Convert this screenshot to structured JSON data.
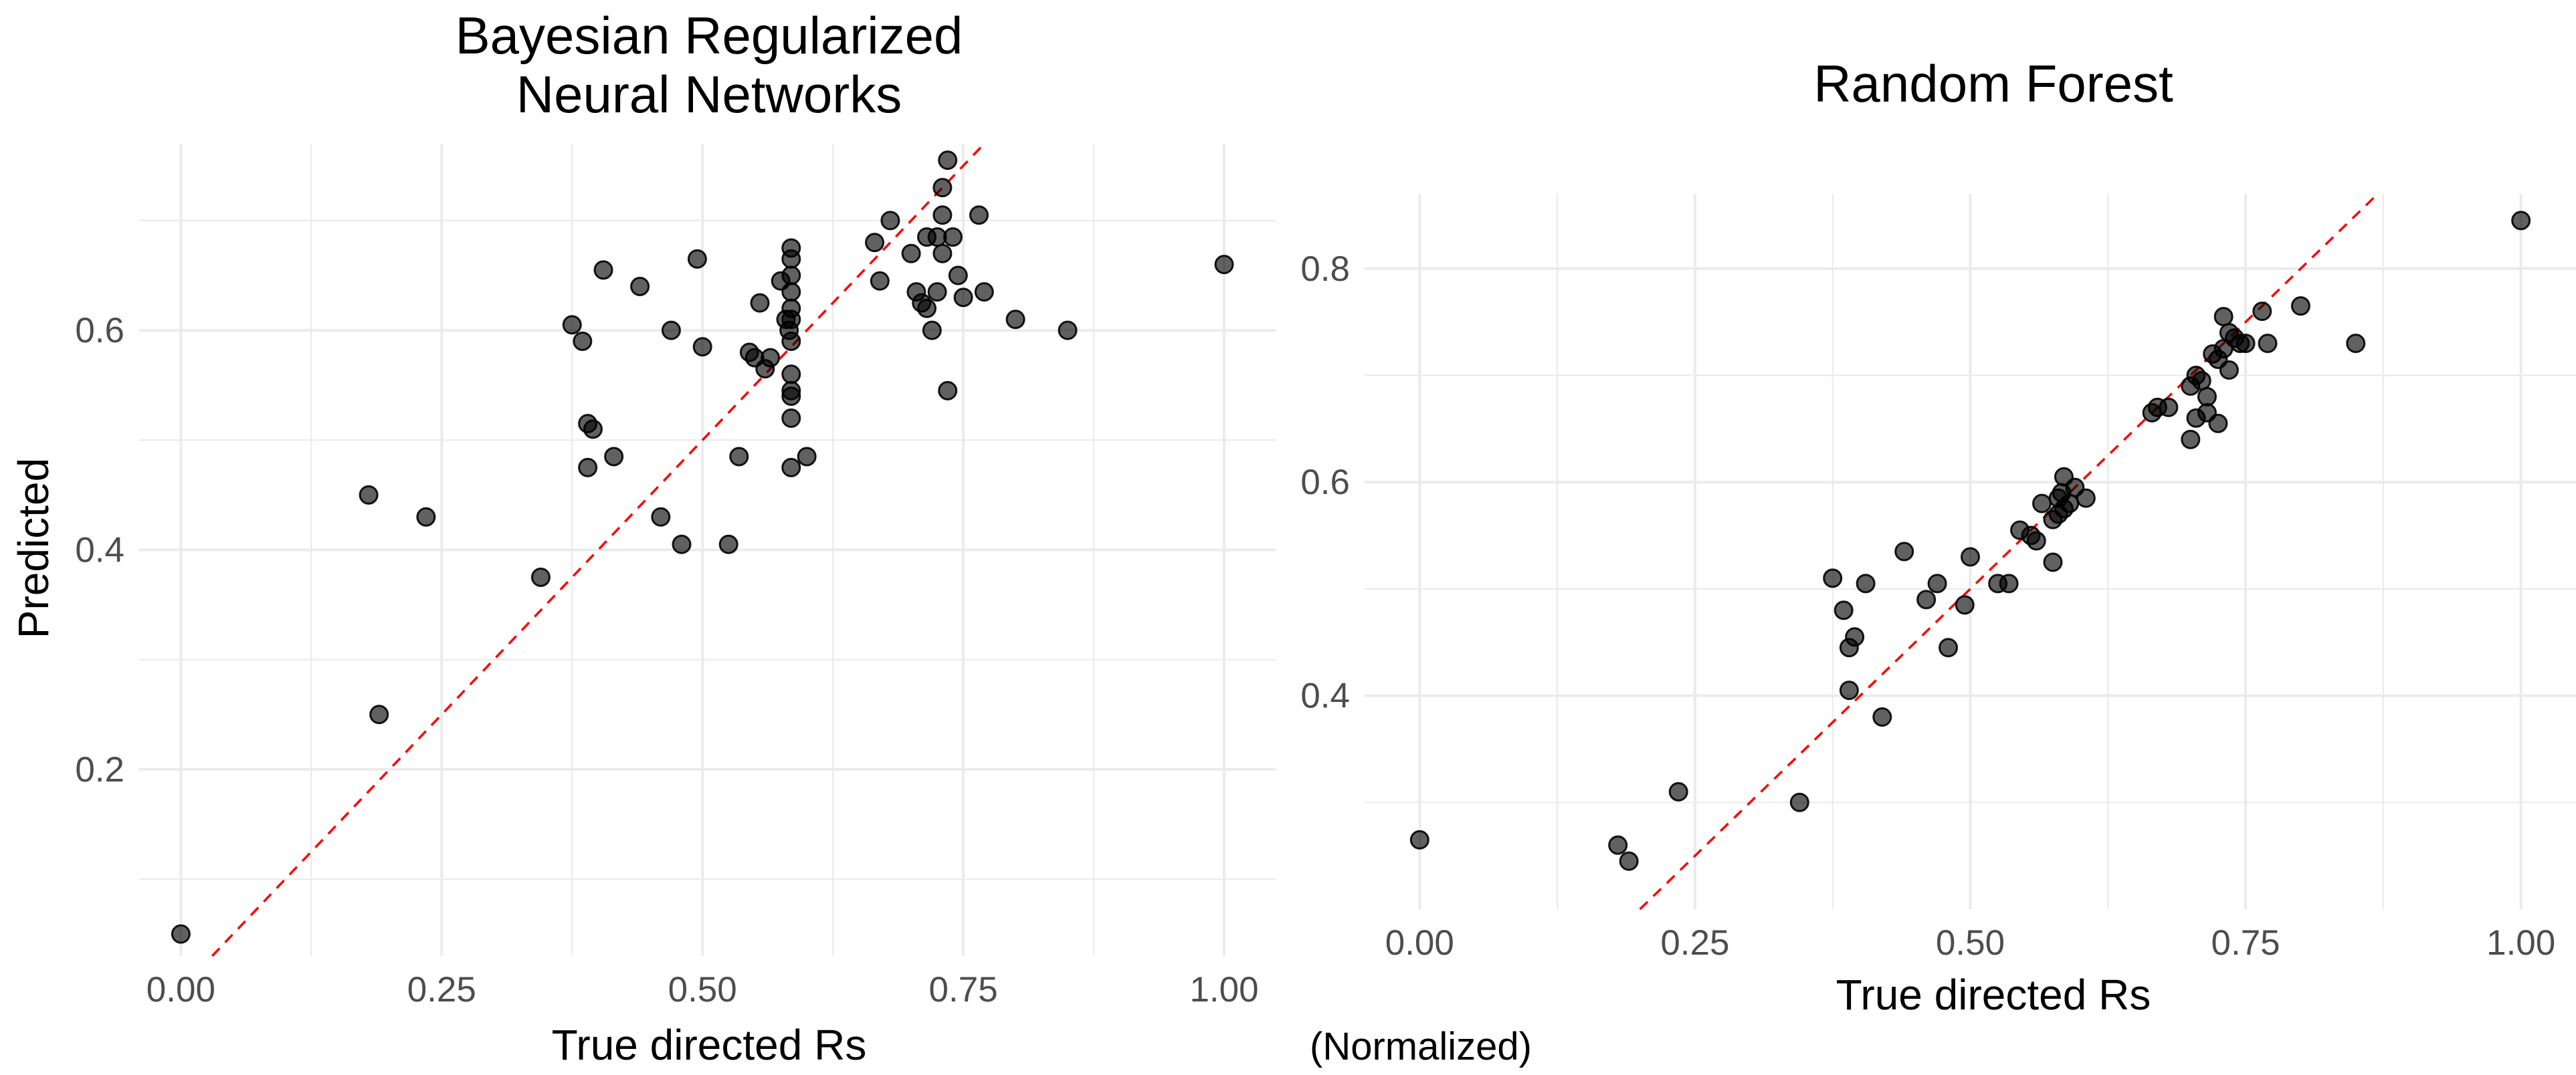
{
  "chart_data": [
    {
      "type": "scatter",
      "title": [
        "Bayesian Regularized",
        "Neural Networks"
      ],
      "xlabel": "True directed Rs",
      "ylabel": "Predicted",
      "xlim": [
        -0.04,
        1.05
      ],
      "ylim": [
        0.03,
        0.77
      ],
      "xticks": [
        0,
        0.25,
        0.5,
        0.75,
        1
      ],
      "xtick_labels": [
        "0.00",
        "0.25",
        "0.50",
        "0.75",
        "1.00"
      ],
      "yticks": [
        0.2,
        0.4,
        0.6
      ],
      "ytick_labels": [
        "0.2",
        "0.4",
        "0.6"
      ],
      "reference_line": "y = x (red dashed)",
      "points": [
        [
          0.0,
          0.05
        ],
        [
          0.18,
          0.45
        ],
        [
          0.19,
          0.25
        ],
        [
          0.235,
          0.43
        ],
        [
          0.345,
          0.375
        ],
        [
          0.375,
          0.605
        ],
        [
          0.385,
          0.59
        ],
        [
          0.39,
          0.515
        ],
        [
          0.39,
          0.475
        ],
        [
          0.395,
          0.51
        ],
        [
          0.405,
          0.655
        ],
        [
          0.415,
          0.485
        ],
        [
          0.44,
          0.64
        ],
        [
          0.46,
          0.43
        ],
        [
          0.47,
          0.6
        ],
        [
          0.48,
          0.405
        ],
        [
          0.495,
          0.665
        ],
        [
          0.5,
          0.585
        ],
        [
          0.525,
          0.405
        ],
        [
          0.535,
          0.485
        ],
        [
          0.545,
          0.58
        ],
        [
          0.55,
          0.575
        ],
        [
          0.555,
          0.625
        ],
        [
          0.56,
          0.565
        ],
        [
          0.565,
          0.575
        ],
        [
          0.575,
          0.645
        ],
        [
          0.58,
          0.61
        ],
        [
          0.583,
          0.6
        ],
        [
          0.585,
          0.675
        ],
        [
          0.585,
          0.665
        ],
        [
          0.585,
          0.65
        ],
        [
          0.585,
          0.635
        ],
        [
          0.585,
          0.62
        ],
        [
          0.585,
          0.61
        ],
        [
          0.585,
          0.59
        ],
        [
          0.585,
          0.56
        ],
        [
          0.585,
          0.545
        ],
        [
          0.585,
          0.54
        ],
        [
          0.585,
          0.52
        ],
        [
          0.585,
          0.475
        ],
        [
          0.6,
          0.485
        ],
        [
          0.665,
          0.68
        ],
        [
          0.67,
          0.645
        ],
        [
          0.68,
          0.7
        ],
        [
          0.7,
          0.67
        ],
        [
          0.705,
          0.635
        ],
        [
          0.71,
          0.625
        ],
        [
          0.715,
          0.685
        ],
        [
          0.715,
          0.62
        ],
        [
          0.72,
          0.6
        ],
        [
          0.725,
          0.685
        ],
        [
          0.725,
          0.635
        ],
        [
          0.73,
          0.705
        ],
        [
          0.73,
          0.67
        ],
        [
          0.73,
          0.73
        ],
        [
          0.735,
          0.755
        ],
        [
          0.735,
          0.545
        ],
        [
          0.74,
          0.685
        ],
        [
          0.745,
          0.65
        ],
        [
          0.75,
          0.63
        ],
        [
          0.765,
          0.705
        ],
        [
          0.77,
          0.635
        ],
        [
          0.8,
          0.61
        ],
        [
          0.85,
          0.6
        ],
        [
          1.0,
          0.66
        ]
      ]
    },
    {
      "type": "scatter",
      "title": "Random Forest",
      "xlabel": "True directed Rs",
      "ylabel": "",
      "xlim": [
        -0.05,
        1.05
      ],
      "ylim": [
        0.2,
        0.87
      ],
      "xticks": [
        0,
        0.25,
        0.5,
        0.75,
        1
      ],
      "xtick_labels": [
        "0.00",
        "0.25",
        "0.50",
        "0.75",
        "1.00"
      ],
      "yticks": [
        0.4,
        0.6,
        0.8
      ],
      "ytick_labels": [
        "0.4",
        "0.6",
        "0.8"
      ],
      "reference_line": "y = x (red dashed)",
      "points": [
        [
          0.0,
          0.265
        ],
        [
          0.18,
          0.26
        ],
        [
          0.19,
          0.245
        ],
        [
          0.235,
          0.31
        ],
        [
          0.345,
          0.3
        ],
        [
          0.375,
          0.51
        ],
        [
          0.385,
          0.48
        ],
        [
          0.39,
          0.445
        ],
        [
          0.395,
          0.455
        ],
        [
          0.39,
          0.405
        ],
        [
          0.405,
          0.505
        ],
        [
          0.42,
          0.38
        ],
        [
          0.44,
          0.535
        ],
        [
          0.46,
          0.49
        ],
        [
          0.47,
          0.505
        ],
        [
          0.48,
          0.445
        ],
        [
          0.495,
          0.485
        ],
        [
          0.5,
          0.53
        ],
        [
          0.525,
          0.505
        ],
        [
          0.535,
          0.505
        ],
        [
          0.545,
          0.555
        ],
        [
          0.555,
          0.55
        ],
        [
          0.56,
          0.545
        ],
        [
          0.565,
          0.58
        ],
        [
          0.575,
          0.525
        ],
        [
          0.575,
          0.565
        ],
        [
          0.58,
          0.57
        ],
        [
          0.58,
          0.585
        ],
        [
          0.583,
          0.59
        ],
        [
          0.585,
          0.605
        ],
        [
          0.585,
          0.575
        ],
        [
          0.59,
          0.58
        ],
        [
          0.595,
          0.595
        ],
        [
          0.605,
          0.585
        ],
        [
          0.665,
          0.665
        ],
        [
          0.67,
          0.67
        ],
        [
          0.68,
          0.67
        ],
        [
          0.7,
          0.64
        ],
        [
          0.7,
          0.69
        ],
        [
          0.705,
          0.7
        ],
        [
          0.705,
          0.66
        ],
        [
          0.71,
          0.695
        ],
        [
          0.715,
          0.665
        ],
        [
          0.715,
          0.68
        ],
        [
          0.72,
          0.72
        ],
        [
          0.725,
          0.655
        ],
        [
          0.725,
          0.715
        ],
        [
          0.73,
          0.755
        ],
        [
          0.73,
          0.725
        ],
        [
          0.735,
          0.705
        ],
        [
          0.735,
          0.74
        ],
        [
          0.74,
          0.735
        ],
        [
          0.745,
          0.73
        ],
        [
          0.75,
          0.73
        ],
        [
          0.765,
          0.76
        ],
        [
          0.77,
          0.73
        ],
        [
          0.8,
          0.765
        ],
        [
          0.85,
          0.73
        ],
        [
          1.0,
          0.845
        ]
      ]
    }
  ],
  "footnote": "(Normalized)"
}
